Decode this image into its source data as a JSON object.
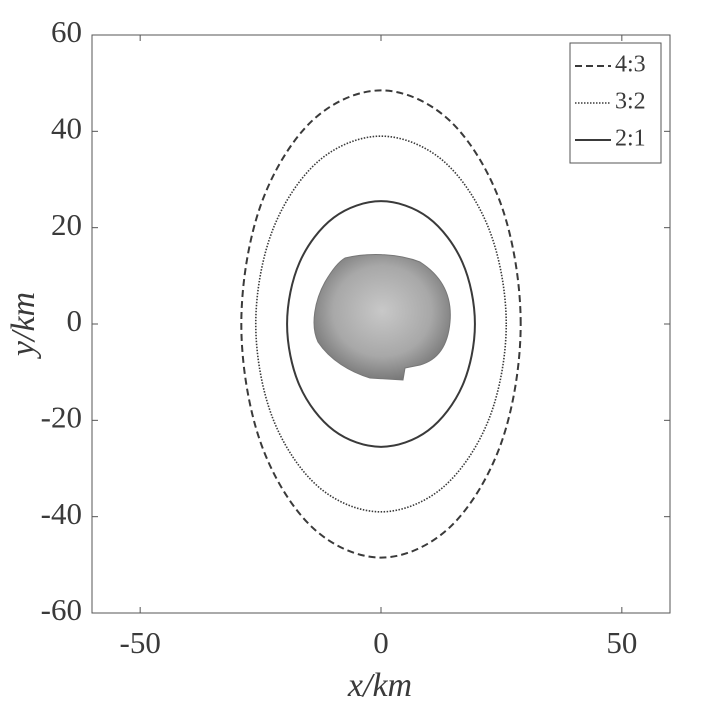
{
  "chart_data": {
    "type": "line",
    "closed": true,
    "xlabel": "x/km",
    "ylabel": "y/km",
    "xlim": [
      -60,
      60
    ],
    "ylim": [
      -60,
      60
    ],
    "xticks": [
      -50,
      0,
      50
    ],
    "yticks": [
      -60,
      -40,
      -20,
      0,
      20,
      40,
      60
    ],
    "legend": "upper right",
    "series": [
      {
        "name": "4:3",
        "color": "#3a3a3a",
        "linestyle": "dashed",
        "x": [
          29,
          25.1,
          14.5,
          0,
          -14.5,
          -25.1,
          -29,
          -25.1,
          -14.5,
          0,
          14.5,
          25.1
        ],
        "values": [
          0,
          24.3,
          42,
          48.5,
          42,
          24.3,
          0,
          -24.3,
          -42,
          -48.5,
          -42,
          -24.3
        ]
      },
      {
        "name": "3:2",
        "color": "#3a3a3a",
        "linestyle": "dotted",
        "x": [
          26,
          22.5,
          13,
          0,
          -13,
          -22.5,
          -26,
          -22.5,
          -13,
          0,
          13,
          22.5
        ],
        "values": [
          0,
          19.5,
          33.8,
          39,
          33.8,
          19.5,
          0,
          -19.5,
          -33.8,
          -39,
          -33.8,
          -19.5
        ]
      },
      {
        "name": "2:1",
        "color": "#3a3a3a",
        "linestyle": "solid",
        "x": [
          19.5,
          16.9,
          9.8,
          0,
          -9.8,
          -16.9,
          -19.5,
          -16.9,
          -9.8,
          0,
          9.8,
          16.9
        ],
        "values": [
          0,
          12.8,
          22.1,
          25.5,
          22.1,
          12.8,
          0,
          -12.8,
          -22.1,
          -25.5,
          -22.1,
          -12.8
        ]
      }
    ]
  }
}
